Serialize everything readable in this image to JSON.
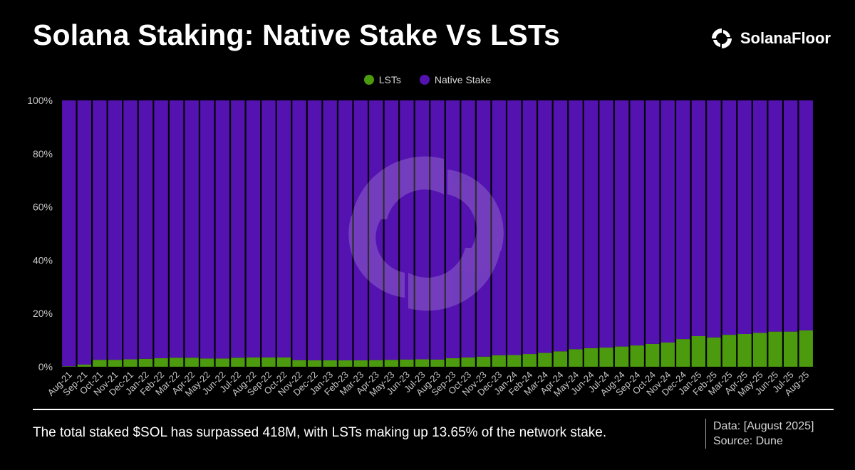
{
  "header": {
    "title": "Solana Staking: Native Stake Vs LSTs",
    "brand": "SolanaFloor"
  },
  "colors": {
    "lsts": "#4c9a0e",
    "native": "#5412b0",
    "background": "#000000"
  },
  "chart_data": {
    "type": "bar",
    "stacked": true,
    "categories": [
      "Aug-21",
      "Sep-21",
      "Oct-21",
      "Nov-21",
      "Dec-21",
      "Jan-22",
      "Feb-22",
      "Mar-22",
      "Apr-22",
      "May-22",
      "Jun-22",
      "Jul-22",
      "Aug-22",
      "Sep-22",
      "Oct-22",
      "Nov-22",
      "Dec-22",
      "Jan-23",
      "Feb-23",
      "Mar-23",
      "Apr-23",
      "May-23",
      "Jun-23",
      "Jul-23",
      "Aug-23",
      "Sep-23",
      "Oct-23",
      "Nov-23",
      "Dec-23",
      "Jan-24",
      "Feb-24",
      "Mar-24",
      "Apr-24",
      "May-24",
      "Jun-24",
      "Jul-24",
      "Aug-24",
      "Sep-24",
      "Oct-24",
      "Nov-24",
      "Dec-24",
      "Jan-25",
      "Feb-25",
      "Mar-25",
      "Apr-25",
      "May-25",
      "Jun-25",
      "Jul-25",
      "Aug-25"
    ],
    "series": [
      {
        "name": "LSTs",
        "values": [
          0.2,
          0.8,
          2.6,
          2.6,
          2.8,
          3.0,
          3.2,
          3.4,
          3.4,
          3.1,
          3.1,
          3.4,
          3.5,
          3.5,
          3.5,
          2.5,
          2.4,
          2.4,
          2.4,
          2.4,
          2.5,
          2.6,
          2.7,
          2.8,
          2.7,
          3.2,
          3.5,
          3.8,
          4.3,
          4.4,
          4.8,
          5.2,
          5.8,
          6.6,
          7.0,
          7.2,
          7.6,
          8.0,
          8.6,
          9.1,
          10.4,
          11.5,
          11.0,
          12.0,
          12.3,
          12.7,
          13.2,
          13.2,
          13.65
        ]
      },
      {
        "name": "Native Stake",
        "values": [
          99.8,
          99.2,
          97.4,
          97.4,
          97.2,
          97.0,
          96.8,
          96.6,
          96.6,
          96.9,
          96.9,
          96.6,
          96.5,
          96.5,
          96.5,
          97.5,
          97.6,
          97.6,
          97.6,
          97.6,
          97.5,
          97.4,
          97.3,
          97.2,
          97.3,
          96.8,
          96.5,
          96.2,
          95.7,
          95.6,
          95.2,
          94.8,
          94.2,
          93.4,
          93.0,
          92.8,
          92.4,
          92.0,
          91.4,
          90.9,
          89.6,
          88.5,
          89.0,
          88.0,
          87.7,
          87.3,
          86.8,
          86.8,
          86.35
        ]
      }
    ],
    "y_ticks": [
      "0%",
      "20%",
      "40%",
      "60%",
      "80%",
      "100%"
    ],
    "ylim": [
      0,
      100
    ],
    "legend_position": "top-center",
    "grid": false
  },
  "footer": {
    "caption": "The total staked $SOL has surpassed 418M, with LSTs making up 13.65% of the network stake.",
    "data_note": "Data: [August 2025]",
    "source_note": "Source: Dune"
  }
}
